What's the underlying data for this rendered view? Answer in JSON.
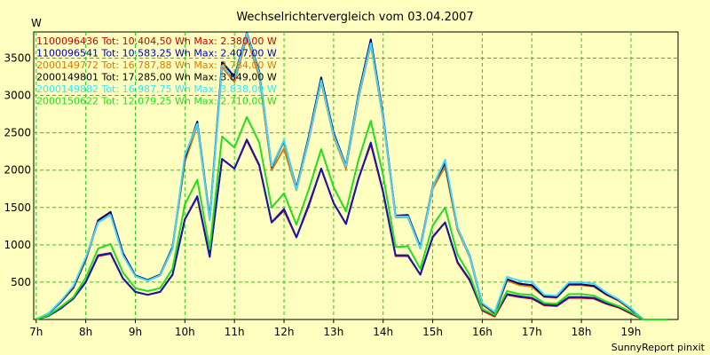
{
  "chart_data": {
    "type": "line",
    "title": "Wechselrichtervergleich vom 03.04.2007",
    "ylabel": "W",
    "footer": "SunnyReport pinxit",
    "grid": true,
    "legend_position": "top-left",
    "xlim": [
      6.95,
      19.95
    ],
    "ylim": [
      0,
      3850
    ],
    "x_tick_labels": [
      "7h",
      "8h",
      "9h",
      "10h",
      "11h",
      "12h",
      "13h",
      "14h",
      "15h",
      "16h",
      "17h",
      "18h",
      "19h"
    ],
    "x_ticks": [
      7,
      8,
      9,
      10,
      11,
      12,
      13,
      14,
      15,
      16,
      17,
      18,
      19
    ],
    "y_ticks": [
      500,
      1000,
      1500,
      2000,
      2500,
      3000,
      3500
    ],
    "x": [
      7.0,
      7.25,
      7.5,
      7.75,
      8.0,
      8.25,
      8.5,
      8.75,
      9.0,
      9.25,
      9.5,
      9.75,
      10.0,
      10.25,
      10.5,
      10.75,
      11.0,
      11.25,
      11.5,
      11.75,
      12.0,
      12.25,
      12.5,
      12.75,
      13.0,
      13.25,
      13.5,
      13.75,
      14.0,
      14.25,
      14.5,
      14.75,
      15.0,
      15.25,
      15.5,
      15.75,
      16.0,
      16.25,
      16.5,
      16.75,
      17.0,
      17.25,
      17.5,
      17.75,
      18.0,
      18.25,
      18.5,
      18.75,
      19.0,
      19.25,
      19.5,
      19.75
    ],
    "series": [
      {
        "name": "1100096436 Tot: 10.404,50 Wh Max: 2.380,00 W",
        "color": "#cc0000",
        "values": [
          0,
          50,
          150,
          280,
          500,
          850,
          880,
          550,
          370,
          330,
          370,
          600,
          1340,
          1640,
          840,
          2150,
          2020,
          2400,
          2060,
          1300,
          1460,
          1100,
          1520,
          2020,
          1560,
          1280,
          1880,
          2350,
          1700,
          850,
          850,
          600,
          1100,
          1300,
          760,
          520,
          120,
          40,
          330,
          300,
          280,
          190,
          180,
          290,
          290,
          280,
          210,
          160,
          80,
          0,
          0,
          0
        ],
        "legend_color": "#cc0000"
      },
      {
        "name": "1100096541 Tot: 10.583,25 Wh Max: 2.407,00 W",
        "color": "#1515b0",
        "values": [
          0,
          50,
          150,
          280,
          500,
          860,
          890,
          550,
          370,
          330,
          370,
          600,
          1340,
          1650,
          840,
          2150,
          2020,
          2410,
          2070,
          1300,
          1480,
          1100,
          1540,
          2020,
          1560,
          1280,
          1880,
          2370,
          1710,
          860,
          860,
          600,
          1110,
          1300,
          770,
          530,
          130,
          60,
          340,
          310,
          290,
          200,
          190,
          300,
          300,
          290,
          220,
          170,
          90,
          0,
          0,
          0
        ],
        "legend_color": "#0000b0"
      },
      {
        "name": "2000149772 Tot: 16.787,88 Wh Max: 3.784,00 W",
        "color": "#e07800",
        "values": [
          0,
          80,
          230,
          420,
          790,
          1310,
          1410,
          870,
          580,
          520,
          590,
          950,
          2110,
          2600,
          1330,
          3380,
          3180,
          3780,
          3250,
          2000,
          2290,
          1730,
          2400,
          3180,
          2450,
          2020,
          2950,
          3680,
          2680,
          1370,
          1370,
          950,
          1750,
          2050,
          1200,
          830,
          200,
          80,
          520,
          460,
          440,
          300,
          290,
          460,
          460,
          440,
          330,
          250,
          130,
          0,
          0,
          0
        ],
        "legend_color": "#e07800"
      },
      {
        "name": "2000149801 Tot: 17.285,00 Wh Max: 3.849,00 W",
        "color": "#000070",
        "values": [
          0,
          80,
          240,
          430,
          810,
          1330,
          1440,
          890,
          590,
          530,
          600,
          970,
          2160,
          2650,
          1350,
          3450,
          3250,
          3840,
          3320,
          2040,
          2390,
          1760,
          2450,
          3240,
          2500,
          2060,
          3010,
          3750,
          2730,
          1390,
          1400,
          970,
          1790,
          2100,
          1230,
          850,
          210,
          90,
          540,
          480,
          460,
          310,
          300,
          470,
          470,
          450,
          340,
          260,
          140,
          0,
          0,
          0
        ],
        "legend_color": "#000000"
      },
      {
        "name": "2000149882 Tot: 16.987,75 Wh Max: 3.838,00 W",
        "color": "#40d8ff",
        "values": [
          0,
          85,
          250,
          450,
          830,
          1300,
          1400,
          860,
          580,
          520,
          590,
          950,
          2200,
          2620,
          1330,
          3400,
          3220,
          3830,
          3300,
          2050,
          2400,
          1740,
          2420,
          3200,
          2470,
          2050,
          2980,
          3700,
          2700,
          1380,
          1380,
          950,
          1780,
          2140,
          1230,
          840,
          220,
          100,
          570,
          520,
          500,
          330,
          320,
          500,
          500,
          480,
          360,
          270,
          150,
          0,
          0,
          0
        ],
        "legend_color": "#30e8ff"
      },
      {
        "name": "2000150622 Tot: 12.079,25 Wh Max: 2.710,00 W",
        "color": "#22dd22",
        "values": [
          0,
          60,
          170,
          300,
          560,
          950,
          1010,
          630,
          420,
          380,
          420,
          680,
          1540,
          1870,
          950,
          2450,
          2300,
          2710,
          2370,
          1500,
          1690,
          1270,
          1740,
          2280,
          1770,
          1450,
          2130,
          2660,
          1930,
          970,
          980,
          680,
          1260,
          1500,
          870,
          590,
          140,
          60,
          380,
          340,
          330,
          220,
          210,
          340,
          340,
          320,
          240,
          180,
          100,
          0,
          0,
          0
        ],
        "legend_color": "#22dd22"
      }
    ]
  }
}
